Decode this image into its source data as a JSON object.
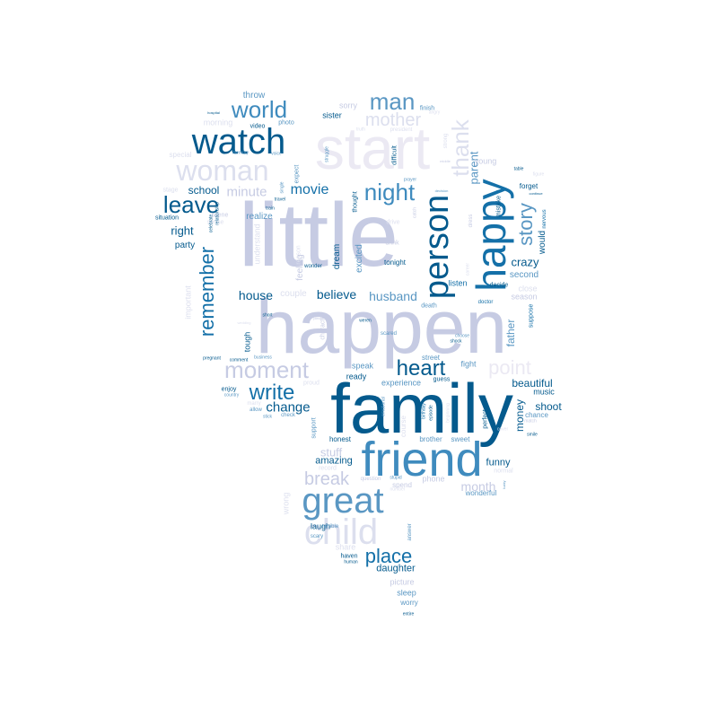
{
  "words": [
    {
      "text": "little",
      "size": 100,
      "color": "#c6cbe3",
      "rot": 0
    },
    {
      "text": "happen",
      "size": 84,
      "color": "#c6cbe3",
      "rot": 0
    },
    {
      "text": "family",
      "size": 78,
      "color": "#045a8d",
      "rot": 0
    },
    {
      "text": "start",
      "size": 66,
      "color": "#ebe9f3",
      "rot": 0
    },
    {
      "text": "friend",
      "size": 54,
      "color": "#3f8bbe",
      "rot": 0
    },
    {
      "text": "happy",
      "size": 46,
      "color": "#1470a8",
      "rot": 270
    },
    {
      "text": "person",
      "size": 38,
      "color": "#045a8d",
      "rot": 270
    },
    {
      "text": "great",
      "size": 40,
      "color": "#5a97c3",
      "rot": 0
    },
    {
      "text": "child",
      "size": 40,
      "color": "#dcdfee",
      "rot": 0
    },
    {
      "text": "watch",
      "size": 40,
      "color": "#045a8d",
      "rot": 0
    },
    {
      "text": "woman",
      "size": 32,
      "color": "#dcdfee",
      "rot": 0
    },
    {
      "text": "moment",
      "size": 26,
      "color": "#c6cbe3",
      "rot": 0
    },
    {
      "text": "thank",
      "size": 26,
      "color": "#dcdfee",
      "rot": 270
    },
    {
      "text": "world",
      "size": 26,
      "color": "#3f8bbe",
      "rot": 0
    },
    {
      "text": "man",
      "size": 26,
      "color": "#5a97c3",
      "rot": 0
    },
    {
      "text": "night",
      "size": 26,
      "color": "#3f8bbe",
      "rot": 0
    },
    {
      "text": "leave",
      "size": 26,
      "color": "#045a8d",
      "rot": 0
    },
    {
      "text": "heart",
      "size": 24,
      "color": "#045a8d",
      "rot": 0
    },
    {
      "text": "remember",
      "size": 22,
      "color": "#1470a8",
      "rot": 270
    },
    {
      "text": "point",
      "size": 22,
      "color": "#ebe9f3",
      "rot": 0
    },
    {
      "text": "write",
      "size": 24,
      "color": "#1470a8",
      "rot": 0
    },
    {
      "text": "place",
      "size": 22,
      "color": "#1470a8",
      "rot": 0
    },
    {
      "text": "story",
      "size": 22,
      "color": "#5a97c3",
      "rot": 270
    },
    {
      "text": "mother",
      "size": 20,
      "color": "#dcdfee",
      "rot": 0
    },
    {
      "text": "break",
      "size": 20,
      "color": "#c6cbe3",
      "rot": 0
    },
    {
      "text": "movie",
      "size": 16,
      "color": "#1470a8",
      "rot": 0
    },
    {
      "text": "minute",
      "size": 15,
      "color": "#c6cbe3",
      "rot": 0
    },
    {
      "text": "change",
      "size": 15,
      "color": "#045a8d",
      "rot": 0
    },
    {
      "text": "house",
      "size": 14,
      "color": "#045a8d",
      "rot": 0
    },
    {
      "text": "believe",
      "size": 14,
      "color": "#045a8d",
      "rot": 0
    },
    {
      "text": "husband",
      "size": 14,
      "color": "#5a97c3",
      "rot": 0
    },
    {
      "text": "parent",
      "size": 13,
      "color": "#5a97c3",
      "rot": 270
    },
    {
      "text": "crazy",
      "size": 13,
      "color": "#045a8d",
      "rot": 0
    },
    {
      "text": "month",
      "size": 14,
      "color": "#c6cbe3",
      "rot": 0
    },
    {
      "text": "school",
      "size": 12,
      "color": "#045a8d",
      "rot": 0
    },
    {
      "text": "right",
      "size": 13,
      "color": "#045a8d",
      "rot": 0
    },
    {
      "text": "beautiful",
      "size": 12,
      "color": "#045a8d",
      "rot": 0
    },
    {
      "text": "money",
      "size": 12,
      "color": "#045a8d",
      "rot": 270
    },
    {
      "text": "father",
      "size": 12,
      "color": "#5a97c3",
      "rot": 270
    },
    {
      "text": "shoot",
      "size": 12,
      "color": "#045a8d",
      "rot": 0
    },
    {
      "text": "stuff",
      "size": 13,
      "color": "#c6cbe3",
      "rot": 0
    },
    {
      "text": "amazing",
      "size": 11,
      "color": "#045a8d",
      "rot": 0
    },
    {
      "text": "daughter",
      "size": 11,
      "color": "#045a8d",
      "rot": 0
    },
    {
      "text": "funny",
      "size": 11,
      "color": "#045a8d",
      "rot": 0
    },
    {
      "text": "feeling",
      "size": 10,
      "color": "#c6cbe3",
      "rot": 270
    },
    {
      "text": "dream",
      "size": 10,
      "color": "#045a8d",
      "rot": 270
    },
    {
      "text": "excited",
      "size": 10,
      "color": "#5a97c3",
      "rot": 270
    },
    {
      "text": "tonight",
      "size": 8,
      "color": "#045a8d",
      "rot": 0
    },
    {
      "text": "listen",
      "size": 9,
      "color": "#1470a8",
      "rot": 0
    },
    {
      "text": "second",
      "size": 10,
      "color": "#5a97c3",
      "rot": 0
    },
    {
      "text": "season",
      "size": 9,
      "color": "#c6cbe3",
      "rot": 0
    },
    {
      "text": "realize",
      "size": 10,
      "color": "#5a97c3",
      "rot": 0
    },
    {
      "text": "party",
      "size": 10,
      "color": "#045a8d",
      "rot": 0
    },
    {
      "text": "throw",
      "size": 10,
      "color": "#5a97c3",
      "rot": 0
    },
    {
      "text": "sorry",
      "size": 9,
      "color": "#c6cbe3",
      "rot": 0
    },
    {
      "text": "sister",
      "size": 9,
      "color": "#045a8d",
      "rot": 0
    },
    {
      "text": "young",
      "size": 9,
      "color": "#c6cbe3",
      "rot": 0
    },
    {
      "text": "forget",
      "size": 8,
      "color": "#045a8d",
      "rot": 0
    },
    {
      "text": "would",
      "size": 10,
      "color": "#045a8d",
      "rot": 270
    },
    {
      "text": "couple",
      "size": 10,
      "color": "#dcdfee",
      "rot": 0
    },
    {
      "text": "tough",
      "size": 9,
      "color": "#045a8d",
      "rot": 270
    },
    {
      "text": "speak",
      "size": 9,
      "color": "#5a97c3",
      "rot": 0
    },
    {
      "text": "ready",
      "size": 9,
      "color": "#045a8d",
      "rot": 0
    },
    {
      "text": "fight",
      "size": 9,
      "color": "#5a97c3",
      "rot": 0
    },
    {
      "text": "street",
      "size": 8,
      "color": "#5a97c3",
      "rot": 0
    },
    {
      "text": "experience",
      "size": 9,
      "color": "#5a97c3",
      "rot": 0
    },
    {
      "text": "music",
      "size": 9,
      "color": "#045a8d",
      "rot": 0
    },
    {
      "text": "chance",
      "size": 8,
      "color": "#5a97c3",
      "rot": 0
    },
    {
      "text": "sweet",
      "size": 8,
      "color": "#5a97c3",
      "rot": 0
    },
    {
      "text": "honest",
      "size": 8,
      "color": "#045a8d",
      "rot": 0
    },
    {
      "text": "brother",
      "size": 8,
      "color": "#5a97c3",
      "rot": 0
    },
    {
      "text": "phone",
      "size": 9,
      "color": "#c6cbe3",
      "rot": 0
    },
    {
      "text": "wonderful",
      "size": 8,
      "color": "#5a97c3",
      "rot": 0
    },
    {
      "text": "spend",
      "size": 8,
      "color": "#c6cbe3",
      "rot": 0
    },
    {
      "text": "laugh",
      "size": 9,
      "color": "#045a8d",
      "rot": 0
    },
    {
      "text": "wrong",
      "size": 9,
      "color": "#dcdfee",
      "rot": 270
    },
    {
      "text": "share",
      "size": 9,
      "color": "#dcdfee",
      "rot": 0
    },
    {
      "text": "picture",
      "size": 9,
      "color": "#c6cbe3",
      "rot": 0
    },
    {
      "text": "sleep",
      "size": 9,
      "color": "#5a97c3",
      "rot": 0
    },
    {
      "text": "worry",
      "size": 8,
      "color": "#5a97c3",
      "rot": 0
    },
    {
      "text": "important",
      "size": 9,
      "color": "#dcdfee",
      "rot": 270
    },
    {
      "text": "understand",
      "size": 9,
      "color": "#dcdfee",
      "rot": 270
    },
    {
      "text": "morning",
      "size": 9,
      "color": "#dcdfee",
      "rot": 0
    },
    {
      "text": "special",
      "size": 8,
      "color": "#dcdfee",
      "rot": 0
    },
    {
      "text": "video",
      "size": 7,
      "color": "#045a8d",
      "rot": 0
    },
    {
      "text": "photo",
      "size": 7,
      "color": "#5a97c3",
      "rot": 0
    },
    {
      "text": "finish",
      "size": 7,
      "color": "#5a97c3",
      "rot": 0
    },
    {
      "text": "close",
      "size": 9,
      "color": "#dcdfee",
      "rot": 0
    },
    {
      "text": "enjoy",
      "size": 7,
      "color": "#045a8d",
      "rot": 0
    },
    {
      "text": "guess",
      "size": 7,
      "color": "#045a8d",
      "rot": 0
    },
    {
      "text": "death",
      "size": 7,
      "color": "#5a97c3",
      "rot": 0
    },
    {
      "text": "drive",
      "size": 7,
      "color": "#dcdfee",
      "rot": 0
    },
    {
      "text": "drink",
      "size": 7,
      "color": "#c6cbe3",
      "rot": 0
    },
    {
      "text": "decide",
      "size": 7,
      "color": "#045a8d",
      "rot": 0
    },
    {
      "text": "doctor",
      "size": 6,
      "color": "#1470a8",
      "rot": 0
    },
    {
      "text": "suppose",
      "size": 7,
      "color": "#1470a8",
      "rot": 270
    },
    {
      "text": "support",
      "size": 7,
      "color": "#5a97c3",
      "rot": 270
    },
    {
      "text": "expect",
      "size": 7,
      "color": "#5a97c3",
      "rot": 270
    },
    {
      "text": "thought",
      "size": 7,
      "color": "#045a8d",
      "rot": 270
    },
    {
      "text": "difficult",
      "size": 7,
      "color": "#045a8d",
      "rot": 270
    },
    {
      "text": "mistake",
      "size": 7,
      "color": "#045a8d",
      "rot": 270
    },
    {
      "text": "situation",
      "size": 7,
      "color": "#045a8d",
      "rot": 0
    },
    {
      "text": "scene",
      "size": 7,
      "color": "#c6cbe3",
      "rot": 0
    },
    {
      "text": "sense",
      "size": 7,
      "color": "#dcdfee",
      "rot": 0
    },
    {
      "text": "course",
      "size": 8,
      "color": "#dcdfee",
      "rot": 270
    },
    {
      "text": "perfect",
      "size": 7,
      "color": "#045a8d",
      "rot": 270
    },
    {
      "text": "normal",
      "size": 7,
      "color": "#dcdfee",
      "rot": 0
    },
    {
      "text": "scared",
      "size": 6,
      "color": "#5a97c3",
      "rot": 0
    },
    {
      "text": "character",
      "size": 7,
      "color": "#c6cbe3",
      "rot": 270
    },
    {
      "text": "answer",
      "size": 6,
      "color": "#5a97c3",
      "rot": 270
    },
    {
      "text": "terrible",
      "size": 6,
      "color": "#5a97c3",
      "rot": 0
    },
    {
      "text": "scary",
      "size": 6,
      "color": "#5a97c3",
      "rot": 0
    },
    {
      "text": "haven",
      "size": 7,
      "color": "#045a8d",
      "rot": 0
    },
    {
      "text": "human",
      "size": 5,
      "color": "#045a8d",
      "rot": 0
    },
    {
      "text": "question",
      "size": 6,
      "color": "#c6cbe3",
      "rot": 0
    },
    {
      "text": "record",
      "size": 7,
      "color": "#dcdfee",
      "rot": 0
    },
    {
      "text": "proud",
      "size": 7,
      "color": "#dcdfee",
      "rot": 0
    },
    {
      "text": "check",
      "size": 6,
      "color": "#5a97c3",
      "rot": 0
    },
    {
      "text": "country",
      "size": 5,
      "color": "#5a97c3",
      "rot": 0
    },
    {
      "text": "allow",
      "size": 6,
      "color": "#5a97c3",
      "rot": 0
    },
    {
      "text": "marry",
      "size": 6,
      "color": "#dcdfee",
      "rot": 0
    },
    {
      "text": "stick",
      "size": 5,
      "color": "#5a97c3",
      "rot": 0
    },
    {
      "text": "business",
      "size": 5,
      "color": "#5a97c3",
      "rot": 0
    },
    {
      "text": "comment",
      "size": 5,
      "color": "#045a8d",
      "rot": 0
    },
    {
      "text": "pregnant",
      "size": 5,
      "color": "#045a8d",
      "rot": 0
    },
    {
      "text": "short",
      "size": 5,
      "color": "#045a8d",
      "rot": 0
    },
    {
      "text": "wedding",
      "size": 4,
      "color": "#dcdfee",
      "rot": 0
    },
    {
      "text": "shock",
      "size": 5,
      "color": "#045a8d",
      "rot": 0
    },
    {
      "text": "choose",
      "size": 5,
      "color": "#5a97c3",
      "rot": 0
    },
    {
      "text": "piece",
      "size": 4,
      "color": "#c6cbe3",
      "rot": 0
    },
    {
      "text": "cover",
      "size": 5,
      "color": "#dcdfee",
      "rot": 0
    },
    {
      "text": "smile",
      "size": 5,
      "color": "#045a8d",
      "rot": 0
    },
    {
      "text": "match",
      "size": 5,
      "color": "#c6cbe3",
      "rot": 0
    },
    {
      "text": "lucky",
      "size": 4,
      "color": "#5a97c3",
      "rot": 270
    },
    {
      "text": "stupid",
      "size": 5,
      "color": "#5a97c3",
      "rot": 0
    },
    {
      "text": "number",
      "size": 5,
      "color": "#dcdfee",
      "rot": 0
    },
    {
      "text": "episode",
      "size": 5,
      "color": "#045a8d",
      "rot": 270
    },
    {
      "text": "birthday",
      "size": 5,
      "color": "#1470a8",
      "rot": 270
    },
    {
      "text": "beginning",
      "size": 5,
      "color": "#dcdfee",
      "rot": 270
    },
    {
      "text": "emotional",
      "size": 5,
      "color": "#5a97c3",
      "rot": 270
    },
    {
      "text": "entire",
      "size": 5,
      "color": "#045a8d",
      "rot": 0
    },
    {
      "text": "wonder",
      "size": 6,
      "color": "#045a8d",
      "rot": 0
    },
    {
      "text": "celebrate",
      "size": 5,
      "color": "#045a8d",
      "rot": 270
    },
    {
      "text": "relationship",
      "size": 5,
      "color": "#045a8d",
      "rot": 270
    },
    {
      "text": "train",
      "size": 5,
      "color": "#045a8d",
      "rot": 0
    },
    {
      "text": "travel",
      "size": 5,
      "color": "#045a8d",
      "rot": 0
    },
    {
      "text": "single",
      "size": 5,
      "color": "#5a97c3",
      "rot": 270
    },
    {
      "text": "memory",
      "size": 5,
      "color": "#5a97c3",
      "rot": 0
    },
    {
      "text": "voice",
      "size": 5,
      "color": "#5a97c3",
      "rot": 0
    },
    {
      "text": "hospital",
      "size": 4,
      "color": "#045a8d",
      "rot": 0
    },
    {
      "text": "angry",
      "size": 5,
      "color": "#dcdfee",
      "rot": 0
    },
    {
      "text": "truth",
      "size": 5,
      "color": "#dcdfee",
      "rot": 0
    },
    {
      "text": "president",
      "size": 6,
      "color": "#dcdfee",
      "rot": 0
    },
    {
      "text": "strong",
      "size": 6,
      "color": "#dcdfee",
      "rot": 270
    },
    {
      "text": "struggle",
      "size": 5,
      "color": "#5a97c3",
      "rot": 270
    },
    {
      "text": "middle",
      "size": 4,
      "color": "#c6cbe3",
      "rot": 0
    },
    {
      "text": "prayer",
      "size": 5,
      "color": "#5a97c3",
      "rot": 0
    },
    {
      "text": "decision",
      "size": 4,
      "color": "#5a97c3",
      "rot": 0
    },
    {
      "text": "table",
      "size": 5,
      "color": "#045a8d",
      "rot": 0
    },
    {
      "text": "figure",
      "size": 5,
      "color": "#dcdfee",
      "rot": 0
    },
    {
      "text": "continue",
      "size": 4,
      "color": "#045a8d",
      "rot": 0
    },
    {
      "text": "nervous",
      "size": 6,
      "color": "#1470a8",
      "rot": 270
    },
    {
      "text": "catch",
      "size": 5,
      "color": "#c6cbe3",
      "rot": 270
    },
    {
      "text": "dress",
      "size": 6,
      "color": "#c6cbe3",
      "rot": 270
    },
    {
      "text": "career",
      "size": 5,
      "color": "#dcdfee",
      "rot": 270
    },
    {
      "text": "weren",
      "size": 5,
      "color": "#045a8d",
      "rot": 0
    },
    {
      "text": "stage",
      "size": 7,
      "color": "#dcdfee",
      "rot": 0
    },
    {
      "text": "reason",
      "size": 7,
      "color": "#dcdfee",
      "rot": 270
    }
  ]
}
